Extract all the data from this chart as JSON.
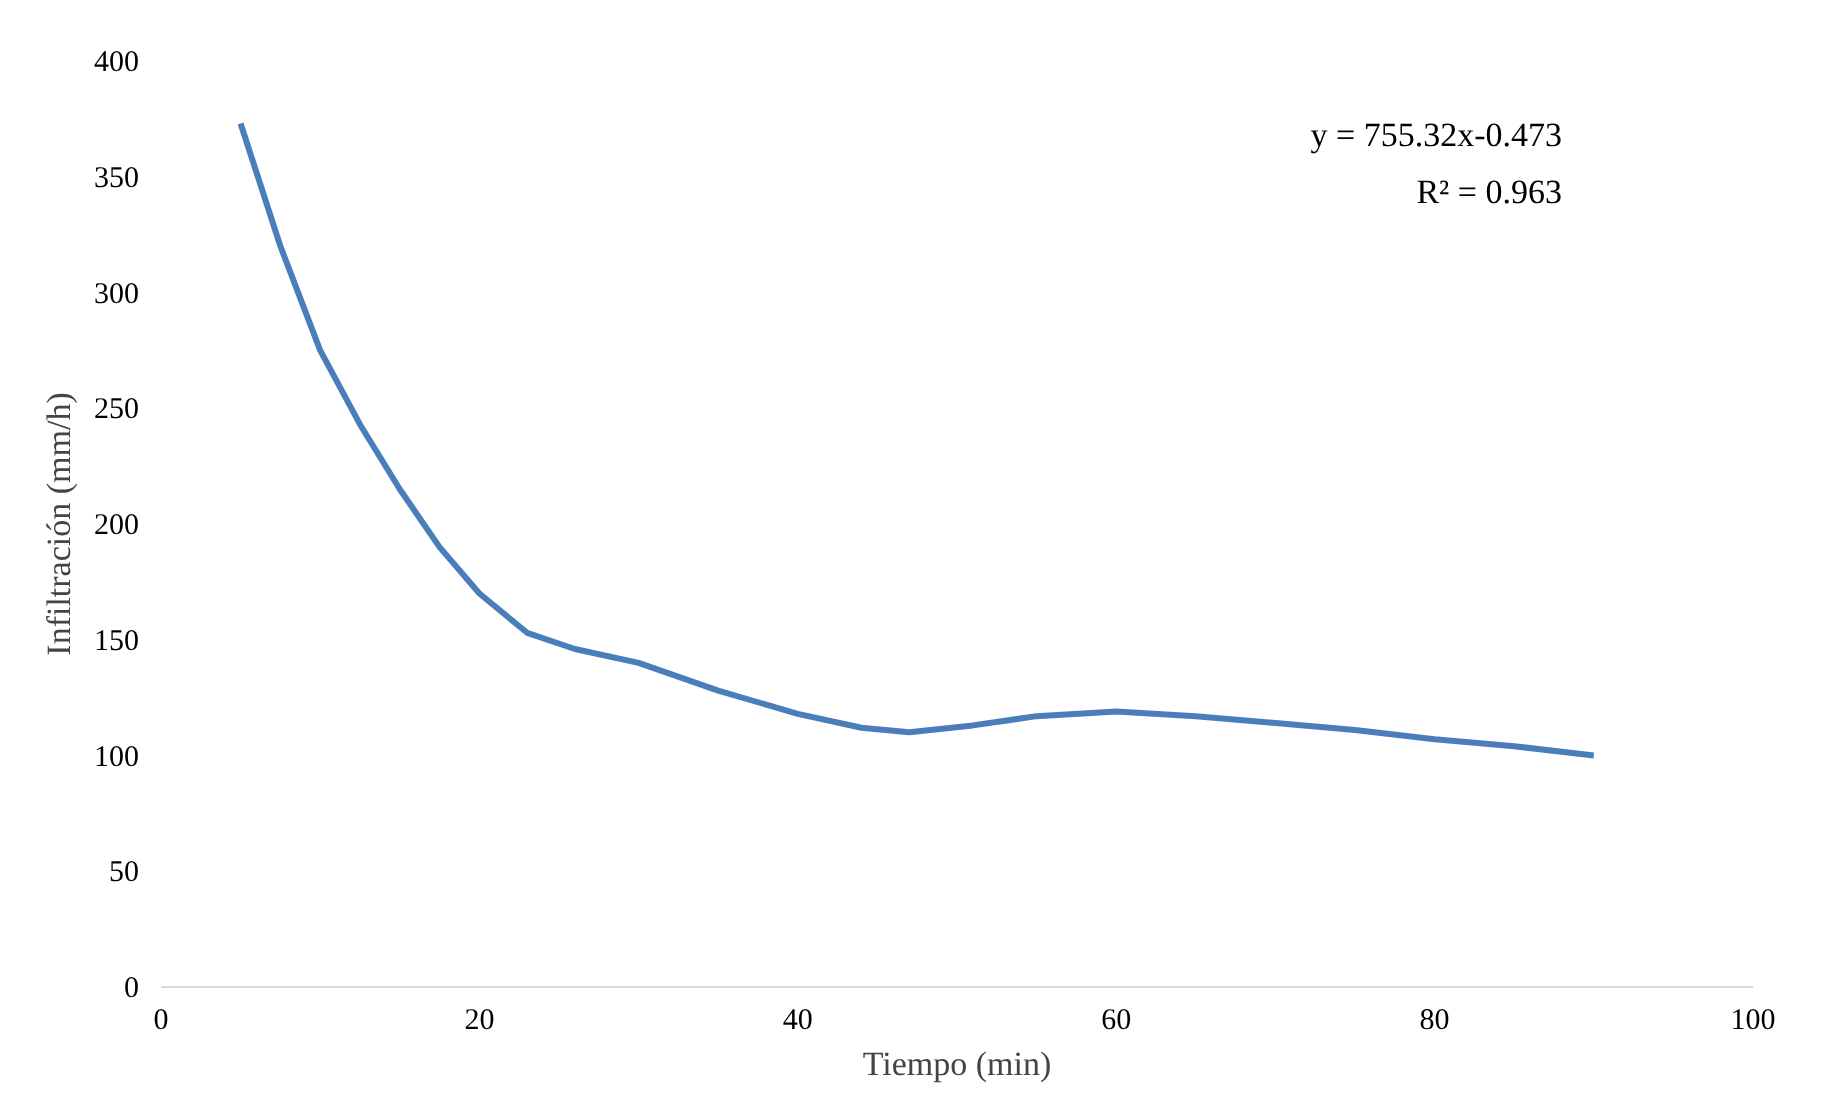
{
  "chart_data": {
    "type": "line",
    "xlabel": "Tiempo (min)",
    "ylabel": "Infiltración (mm/h)",
    "x": [
      5,
      7.5,
      10,
      12.5,
      15,
      17.5,
      20,
      23,
      26,
      30,
      35,
      40,
      44,
      47,
      51,
      55,
      60,
      65,
      70,
      75,
      80,
      85,
      90
    ],
    "series": [
      {
        "color": "#4a7ebb",
        "values": [
          373,
          320,
          275,
          243,
          215,
          190,
          170,
          153,
          146,
          140,
          128,
          118,
          112,
          110,
          113,
          117,
          119,
          117,
          114,
          111,
          107,
          104,
          100
        ]
      }
    ],
    "xlim": [
      0,
      100
    ],
    "xticks": [
      0,
      20,
      40,
      60,
      80,
      100
    ],
    "ylim": [
      0,
      400
    ],
    "yticks": [
      0,
      50,
      100,
      150,
      200,
      250,
      300,
      350,
      400
    ],
    "grid": false,
    "marker": "none",
    "line_style": "solid",
    "annotations": [
      "y = 755.32x-0.473",
      "R² = 0.963"
    ]
  }
}
